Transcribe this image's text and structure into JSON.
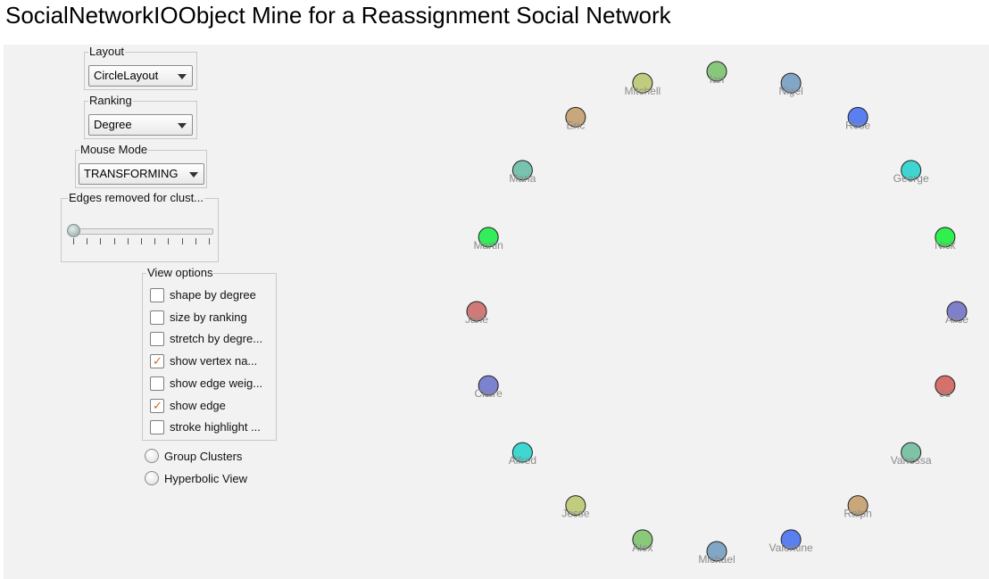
{
  "title": "SocialNetworkIOObject Mine for a Reassignment Social Network",
  "layout": {
    "legend": "Layout",
    "value": "CircleLayout"
  },
  "ranking": {
    "legend": "Ranking",
    "value": "Degree"
  },
  "mouse_mode": {
    "legend": "Mouse Mode",
    "value": "TRANSFORMING"
  },
  "edges_removed": {
    "legend": "Edges removed for clust...",
    "value": 0
  },
  "view_options": {
    "legend": "View options",
    "items": [
      {
        "label": "shape by degree",
        "checked": false
      },
      {
        "label": "size by ranking",
        "checked": false
      },
      {
        "label": "stretch by degre...",
        "checked": false
      },
      {
        "label": "show vertex na...",
        "checked": true
      },
      {
        "label": "show edge weig...",
        "checked": false
      },
      {
        "label": "show edge",
        "checked": true
      },
      {
        "label": "stroke highlight ...",
        "checked": false
      }
    ]
  },
  "radios": {
    "group_clusters": "Group Clusters",
    "hyperbolic_view": "Hyperbolic View"
  },
  "vertices": [
    {
      "name": "Ian",
      "color": "#88c87a"
    },
    {
      "name": "Mitchell",
      "color": "#c2cc7e"
    },
    {
      "name": "Nigel",
      "color": "#82a7c6"
    },
    {
      "name": "Eric",
      "color": "#c9a77c"
    },
    {
      "name": "Rose",
      "color": "#5a7ff0"
    },
    {
      "name": "Maria",
      "color": "#78c2b0"
    },
    {
      "name": "George",
      "color": "#3fd6d2"
    },
    {
      "name": "Martin",
      "color": "#33ee5a"
    },
    {
      "name": "Nick",
      "color": "#2ff04c"
    },
    {
      "name": "Jane",
      "color": "#d07a78"
    },
    {
      "name": "Alice",
      "color": "#7f80cc"
    },
    {
      "name": "Claire",
      "color": "#7d82d0"
    },
    {
      "name": "Jo",
      "color": "#d6706c"
    },
    {
      "name": "Alfred",
      "color": "#3ed8d0"
    },
    {
      "name": "Vanessa",
      "color": "#7fc3a6"
    },
    {
      "name": "Jesse",
      "color": "#c2cc7e"
    },
    {
      "name": "Ralph",
      "color": "#caa77a"
    },
    {
      "name": "Alex",
      "color": "#8ac87a"
    },
    {
      "name": "Valentine",
      "color": "#5a7ff0"
    },
    {
      "name": "Michael",
      "color": "#82a7c6"
    }
  ]
}
